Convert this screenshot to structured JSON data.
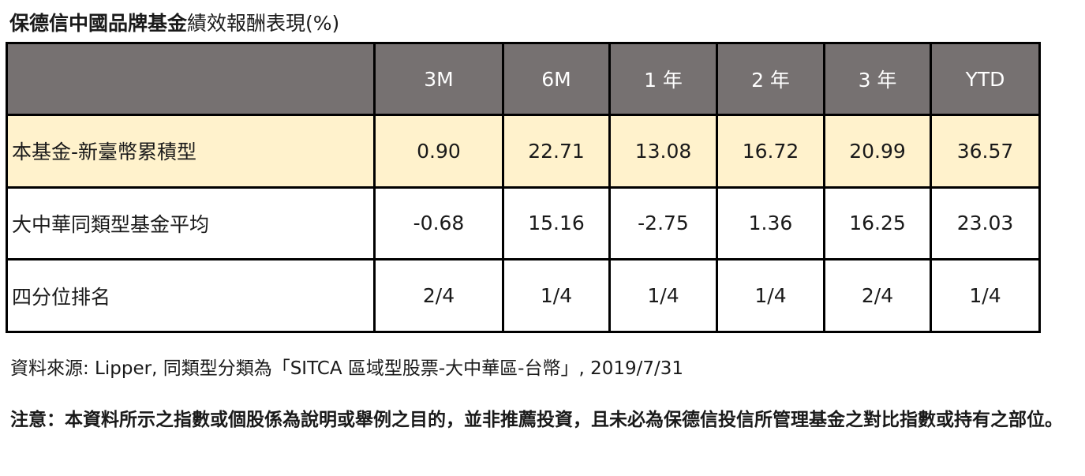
{
  "title": {
    "bold_part": "保德信中國品牌基金",
    "normal_part": "績效報酬表現(%)"
  },
  "table": {
    "columns": [
      "",
      "3M",
      "6M",
      "1 年",
      "2 年",
      "3 年",
      "YTD"
    ],
    "rows": [
      {
        "label": "本基金-新臺幣累積型",
        "values": [
          "0.90",
          "22.71",
          "13.08",
          "16.72",
          "20.99",
          "36.57"
        ]
      },
      {
        "label": "大中華同類型基金平均",
        "values": [
          "-0.68",
          "15.16",
          "-2.75",
          "1.36",
          "16.25",
          "23.03"
        ]
      },
      {
        "label": "四分位排名",
        "values": [
          "2/4",
          "1/4",
          "1/4",
          "1/4",
          "2/4",
          "1/4"
        ]
      }
    ]
  },
  "source": "資料來源: Lipper, 同類型分類為「SITCA 區域型股票-大中華區-台幣」, 2019/7/31",
  "note": "注意：本資料所示之指數或個股係為說明或舉例之目的，並非推薦投資，且未必為保德信投信所管理基金之對比指數或持有之部位。",
  "colors": {
    "header_bg": "#767171",
    "highlight_row_bg": "#fff2cc",
    "border": "#000000"
  }
}
